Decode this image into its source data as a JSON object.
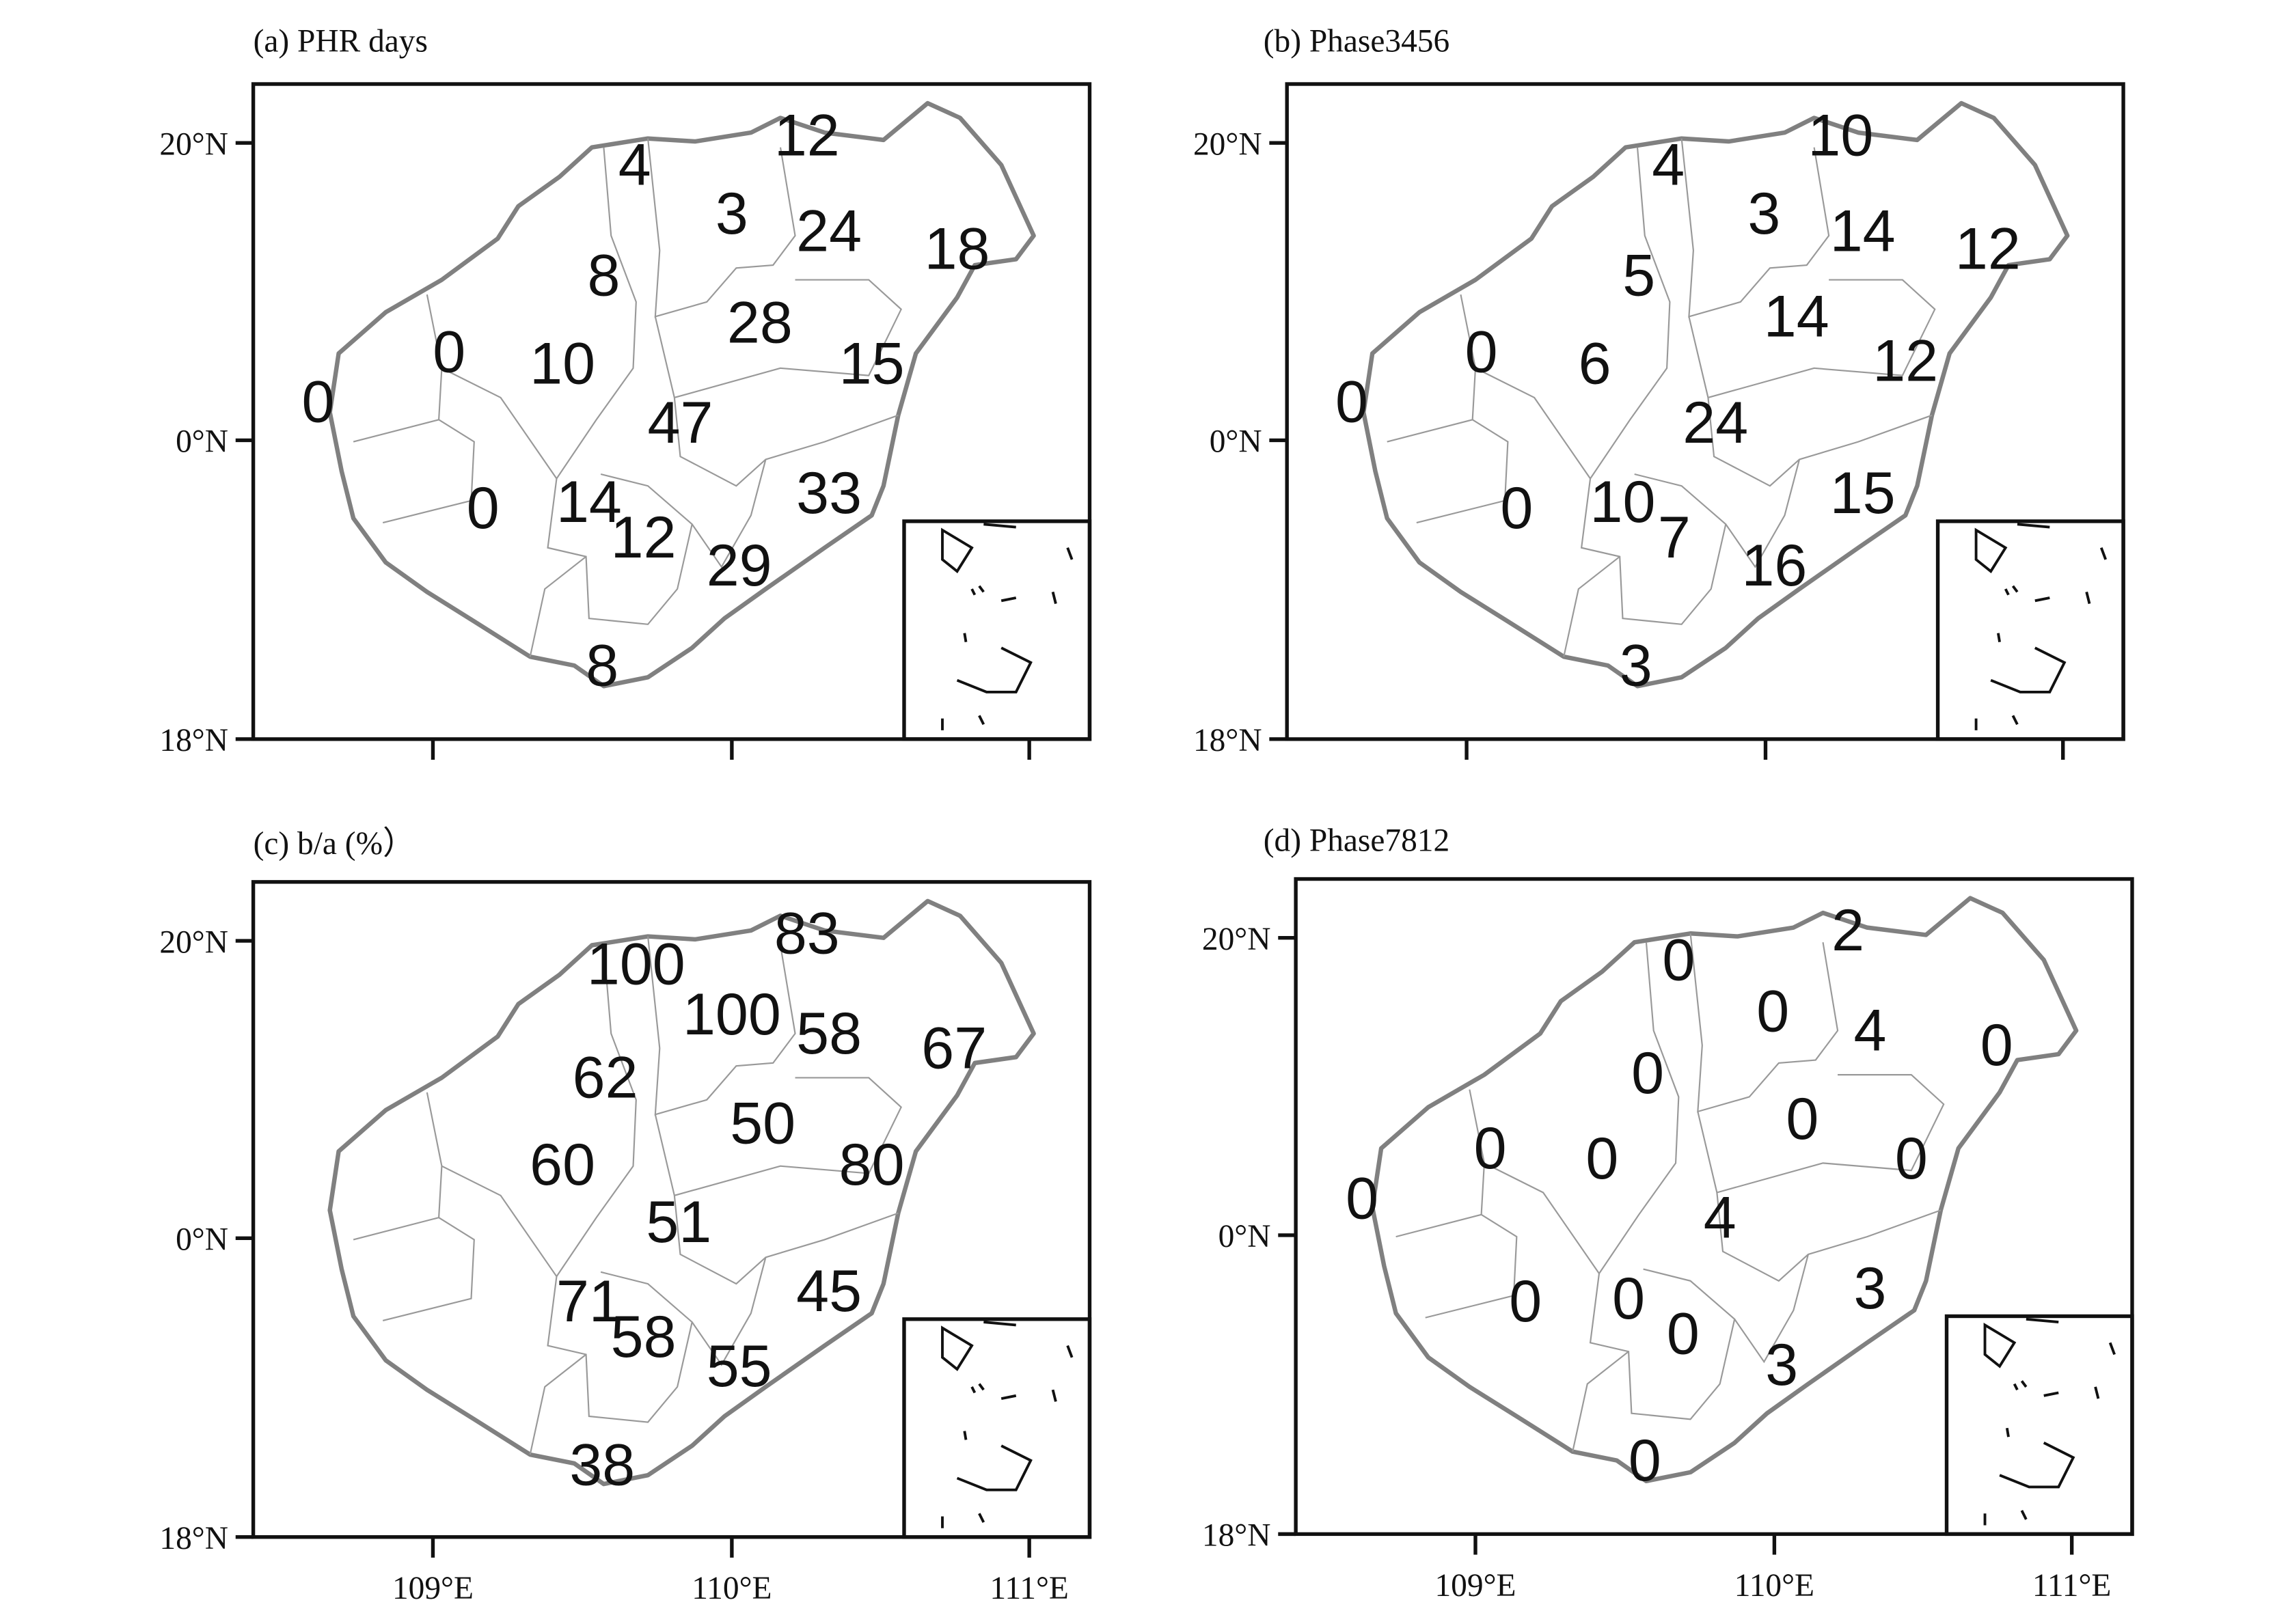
{
  "panels": [
    {
      "title": "(a) PHR days",
      "labels": [
        4,
        12,
        3,
        24,
        18,
        8,
        28,
        0,
        10,
        15,
        0,
        47,
        0,
        14,
        33,
        12,
        29,
        8
      ]
    },
    {
      "title": "(b) Phase3456",
      "labels": [
        4,
        10,
        3,
        14,
        12,
        5,
        14,
        0,
        6,
        12,
        0,
        24,
        0,
        10,
        15,
        7,
        16,
        3
      ]
    },
    {
      "title": "(c) b/a (%）",
      "labels": [
        100,
        83,
        100,
        58,
        67,
        62,
        50,
        60,
        80,
        51,
        71,
        45,
        58,
        55,
        38
      ]
    },
    {
      "title": "(d) Phase7812",
      "labels": [
        0,
        2,
        0,
        4,
        0,
        0,
        0,
        0,
        0,
        0,
        0,
        4,
        0,
        0,
        3,
        0,
        3,
        0
      ]
    }
  ],
  "y_axis_labels": [
    "20°N",
    "0°N",
    "18°N"
  ],
  "x_axis_labels": [
    "109°E",
    "110°E",
    "111°E"
  ]
}
